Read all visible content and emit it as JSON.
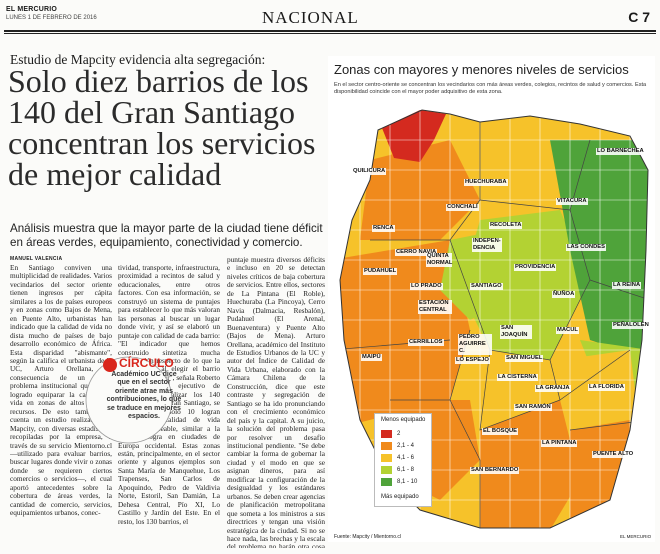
{
  "header": {
    "paper": "EL MERCURIO",
    "date": "LUNES 1 DE FEBRERO DE 2016",
    "section": "NACIONAL",
    "page": "C 7"
  },
  "article": {
    "kicker": "Estudio de Mapcity evidencia alta segregación:",
    "headline": "Solo diez barrios de los 140 del Gran Santiago concentran los servicios de mejor calidad",
    "subhead": "Análisis muestra que la mayor parte de la ciudad tiene déficit en áreas verdes, equipamiento, conectividad y comercio.",
    "byline": "MANUEL VALENCIA",
    "col1": "En Santiago conviven una multiplicidad de realidades. Varios vecindarios del sector oriente tienen ingresos per cápita similares a los de países europeos y en zonas como Bajos de Mena, en Puente Alto, urbanistas han indicado que la calidad de vida no dista mucho de países de bajo desarrollo económico de África. Esta disparidad \"abismante\", según la califica el urbanista de la UC, Arturo Orellana, es consecuencia de un grave problema institucional que no ha logrado equiparar la calidad de vida en zonas de altos y bajos recursos. De esto también da cuenta un estudio realizado por Mapcity, con diversas estadísticas recopiladas por la empresa, a través de su servicio Mientorno.cl —utilizado para evaluar barrios, buscar lugares donde vivir o zonas donde se requieren ciertos comercios o servicios—, el cual aportó antecedentes sobre la cobertura de áreas verdes, la cantidad de comercio, servicios, equipamientos urbanos, conec-",
    "col2": "tividad, transporte, infraestructura, proximidad a recintos de salud y educacionales, entre otros factores. Con esa información, se construyó un sistema de puntajes para establecer lo que más valoran las personas al buscar un lugar donde vivir, y así se elaboró un puntaje con calidad de cada barrio: \"El indicador que hemos construido sintetiza mucha información respecto de lo que la gente valora al elegir el barrio donde desea vivir\", señala Roberto Cambi, director ejecutivo de Mapcity. Al analizar los 140 vecindarios del Gran Santiago, se concluyó que solo 10 logran obtener una calidad de vida altamente deseable, similar a la que se logra en ciudades de Europa occidental. Estas zonas están, principalmente, en el sector oriente y algunos ejemplos son Santa María de Manquehue, Los Trapenses, San Carlos de Apoquindo, Pedro de Valdivia Norte, Estoril, San Damián, La Dehesa Central, Pío XI, Lo Castillo y Jardín del Este. En el resto, los 130 barrios, el",
    "col3": "puntaje muestra diversos déficits e incluso en 20 se detectan niveles críticos de baja cobertura de servicios. Entre ellos, sectores de La Pintana (El Roble), Huechuraba (La Pincoya), Cerro Navia (Dalmacia, Resbalón), Pudahuel (El Arenal, Buenaventura) y Puente Alto (Bajos de Mena). Arturo Orellana, académico del Instituto de Estudios Urbanos de la UC y autor del Índice de Calidad de Vida Urbana, elaborado con la Cámara Chilena de la Construcción, dice que este contraste y segregación de Santiago se ha ido pronunciando con el crecimiento económico del país y la capital. A su juicio, la solución del problema pasa por resolver un desafío institucional pendiente. \"Se debe cambiar la forma de gobernar la ciudad y el modo en que se asignan dineros, para así modificar la configuración de la desigualdad y los estándares urbanos. Se deben crear agencias de planificación metropolitana que someta a los ministros a sus directrices y tengan una visión estratégica de la ciudad. Si no se hace nada, las brechas y la escala del problema no harán otra cosa que aumentar\", plantea el especialista.",
    "circle": {
      "title": "CÍRCULO",
      "text": "Académico UC dice que en el sector oriente atrae más contribuciones, lo que se traduce en mejores espacios."
    }
  },
  "map": {
    "title": "Zonas con mayores y menores niveles de servicios",
    "description": "En el sector centro-oriente se concentran los vecindarios con más áreas verdes, colegios, recintos de salud y comercios. Esta disponibilidad coincide con el mayor poder adquisitivo de esta zona.",
    "labels": {
      "quilicura": "QUILICURA",
      "huechuraba": "HUECHURABA",
      "lo_barnechea": "LO BARNECHEA",
      "conchali": "CONCHALÍ",
      "vitacura": "VITACURA",
      "recoleta": "RECOLETA",
      "renca": "RENCA",
      "independencia": "INDEPEN-DENCIA",
      "las_condes": "LAS CONDES",
      "cerro_navia": "CERRO NAVIA",
      "quinta_normal": "QUINTA NORMAL",
      "providencia": "PROVIDENCIA",
      "pudahuel": "PUDAHUEL",
      "lo_prado": "LO PRADO",
      "santiago": "SANTIAGO",
      "nunoa": "ÑUÑOA",
      "la_reina": "LA REINA",
      "estacion_central": "ESTACIÓN CENTRAL",
      "cerrillos": "CERRILLOS",
      "pedro_aguirre_cerda": "PEDRO AGUIRRE C.",
      "san_joaquin": "SAN JOAQUÍN",
      "macul": "MACUL",
      "penalolen": "PEÑALOLÉN",
      "maipu": "MAIPÚ",
      "lo_espejo": "LO ESPEJO",
      "san_miguel": "SAN MIGUEL",
      "la_cisterna": "LA CISTERNA",
      "la_granja": "LA GRANJA",
      "la_florida": "LA FLORIDA",
      "san_ramon": "SAN RAMÓN",
      "el_bosque": "EL BOSQUE",
      "la_pintana": "LA PINTANA",
      "puente_alto": "PUENTE ALTO",
      "san_bernardo": "SAN BERNARDO"
    },
    "legend": {
      "title": "Menos equipado",
      "footer": "Más equipado",
      "items": [
        {
          "label": "2",
          "color": "#d42a1f"
        },
        {
          "label": "2,1 - 4",
          "color": "#f08a1c"
        },
        {
          "label": "4,1 - 6",
          "color": "#f6c22a"
        },
        {
          "label": "6,1 - 8",
          "color": "#b3d233"
        },
        {
          "label": "8,1 - 10",
          "color": "#4fa33a"
        }
      ]
    },
    "source": "Fuente: Mapcity / Mientorno.cl",
    "credit": "EL MERCURIO"
  }
}
